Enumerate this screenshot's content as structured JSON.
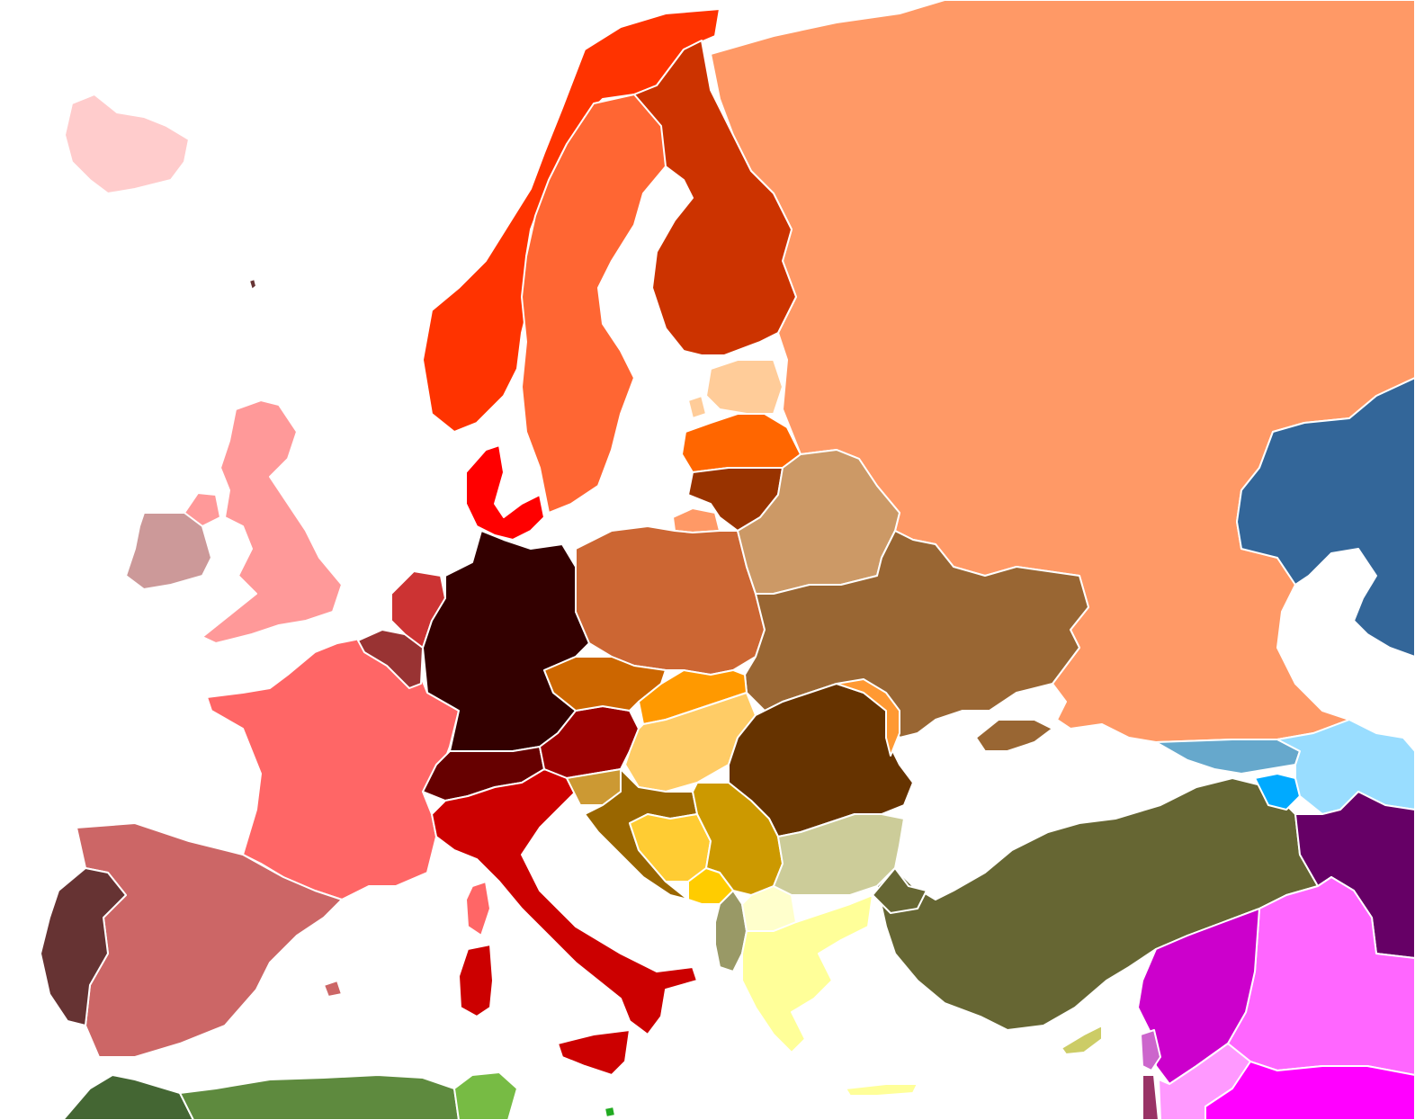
{
  "map": {
    "countries": [
      {
        "id": "russia",
        "color": "#FF9966"
      },
      {
        "id": "norway",
        "color": "#FF3300"
      },
      {
        "id": "sweden",
        "color": "#FF6633"
      },
      {
        "id": "finland",
        "color": "#CC3300"
      },
      {
        "id": "iceland",
        "color": "#FFCCCC"
      },
      {
        "id": "united-kingdom",
        "color": "#FF9999"
      },
      {
        "id": "ireland",
        "color": "#CC9999"
      },
      {
        "id": "france",
        "color": "#FF6666"
      },
      {
        "id": "spain",
        "color": "#CC6666"
      },
      {
        "id": "portugal",
        "color": "#663333"
      },
      {
        "id": "belgium",
        "color": "#993333"
      },
      {
        "id": "netherlands",
        "color": "#CC3333"
      },
      {
        "id": "denmark",
        "color": "#FF0000"
      },
      {
        "id": "germany",
        "color": "#330000"
      },
      {
        "id": "switzerland",
        "color": "#660000"
      },
      {
        "id": "austria",
        "color": "#990000"
      },
      {
        "id": "italy",
        "color": "#CC0000"
      },
      {
        "id": "sardinia",
        "color": "#CC0000"
      },
      {
        "id": "corsica",
        "color": "#FF6666"
      },
      {
        "id": "estonia",
        "color": "#FFCC99"
      },
      {
        "id": "latvia",
        "color": "#FF6600"
      },
      {
        "id": "lithuania",
        "color": "#993300"
      },
      {
        "id": "kaliningrad",
        "color": "#FF9966"
      },
      {
        "id": "poland",
        "color": "#CC6633"
      },
      {
        "id": "belarus",
        "color": "#CC9966"
      },
      {
        "id": "ukraine",
        "color": "#996633"
      },
      {
        "id": "czechia",
        "color": "#CC6600"
      },
      {
        "id": "slovakia",
        "color": "#FF9900"
      },
      {
        "id": "hungary",
        "color": "#FFCC66"
      },
      {
        "id": "romania",
        "color": "#663300"
      },
      {
        "id": "moldova",
        "color": "#FF9933"
      },
      {
        "id": "slovenia",
        "color": "#CC9933"
      },
      {
        "id": "croatia",
        "color": "#996600"
      },
      {
        "id": "bosnia",
        "color": "#FFCC33"
      },
      {
        "id": "serbia",
        "color": "#CC9900"
      },
      {
        "id": "montenegro",
        "color": "#FFCC00"
      },
      {
        "id": "albania",
        "color": "#999966"
      },
      {
        "id": "north-macedonia",
        "color": "#FFFFCC"
      },
      {
        "id": "bulgaria",
        "color": "#CCCC99"
      },
      {
        "id": "greece",
        "color": "#FFFF99"
      },
      {
        "id": "turkey",
        "color": "#666633"
      },
      {
        "id": "cyprus",
        "color": "#CCCC66"
      },
      {
        "id": "kazakhstan",
        "color": "#336699"
      },
      {
        "id": "georgia",
        "color": "#66A8CC"
      },
      {
        "id": "armenia",
        "color": "#00AAFF"
      },
      {
        "id": "azerbaijan",
        "color": "#99DDFF"
      },
      {
        "id": "iran",
        "color": "#660066"
      },
      {
        "id": "iraq",
        "color": "#FF66FF"
      },
      {
        "id": "syria",
        "color": "#CC00CC"
      },
      {
        "id": "lebanon",
        "color": "#CC66CC"
      },
      {
        "id": "jordan",
        "color": "#FF99FF"
      },
      {
        "id": "saudi-arabia",
        "color": "#FF00FF"
      },
      {
        "id": "israel",
        "color": "#993366"
      },
      {
        "id": "morocco",
        "color": "#446633"
      },
      {
        "id": "algeria",
        "color": "#5E8A3E"
      },
      {
        "id": "tunisia",
        "color": "#77BB44"
      },
      {
        "id": "faroe-islands",
        "color": "#663333"
      }
    ]
  }
}
